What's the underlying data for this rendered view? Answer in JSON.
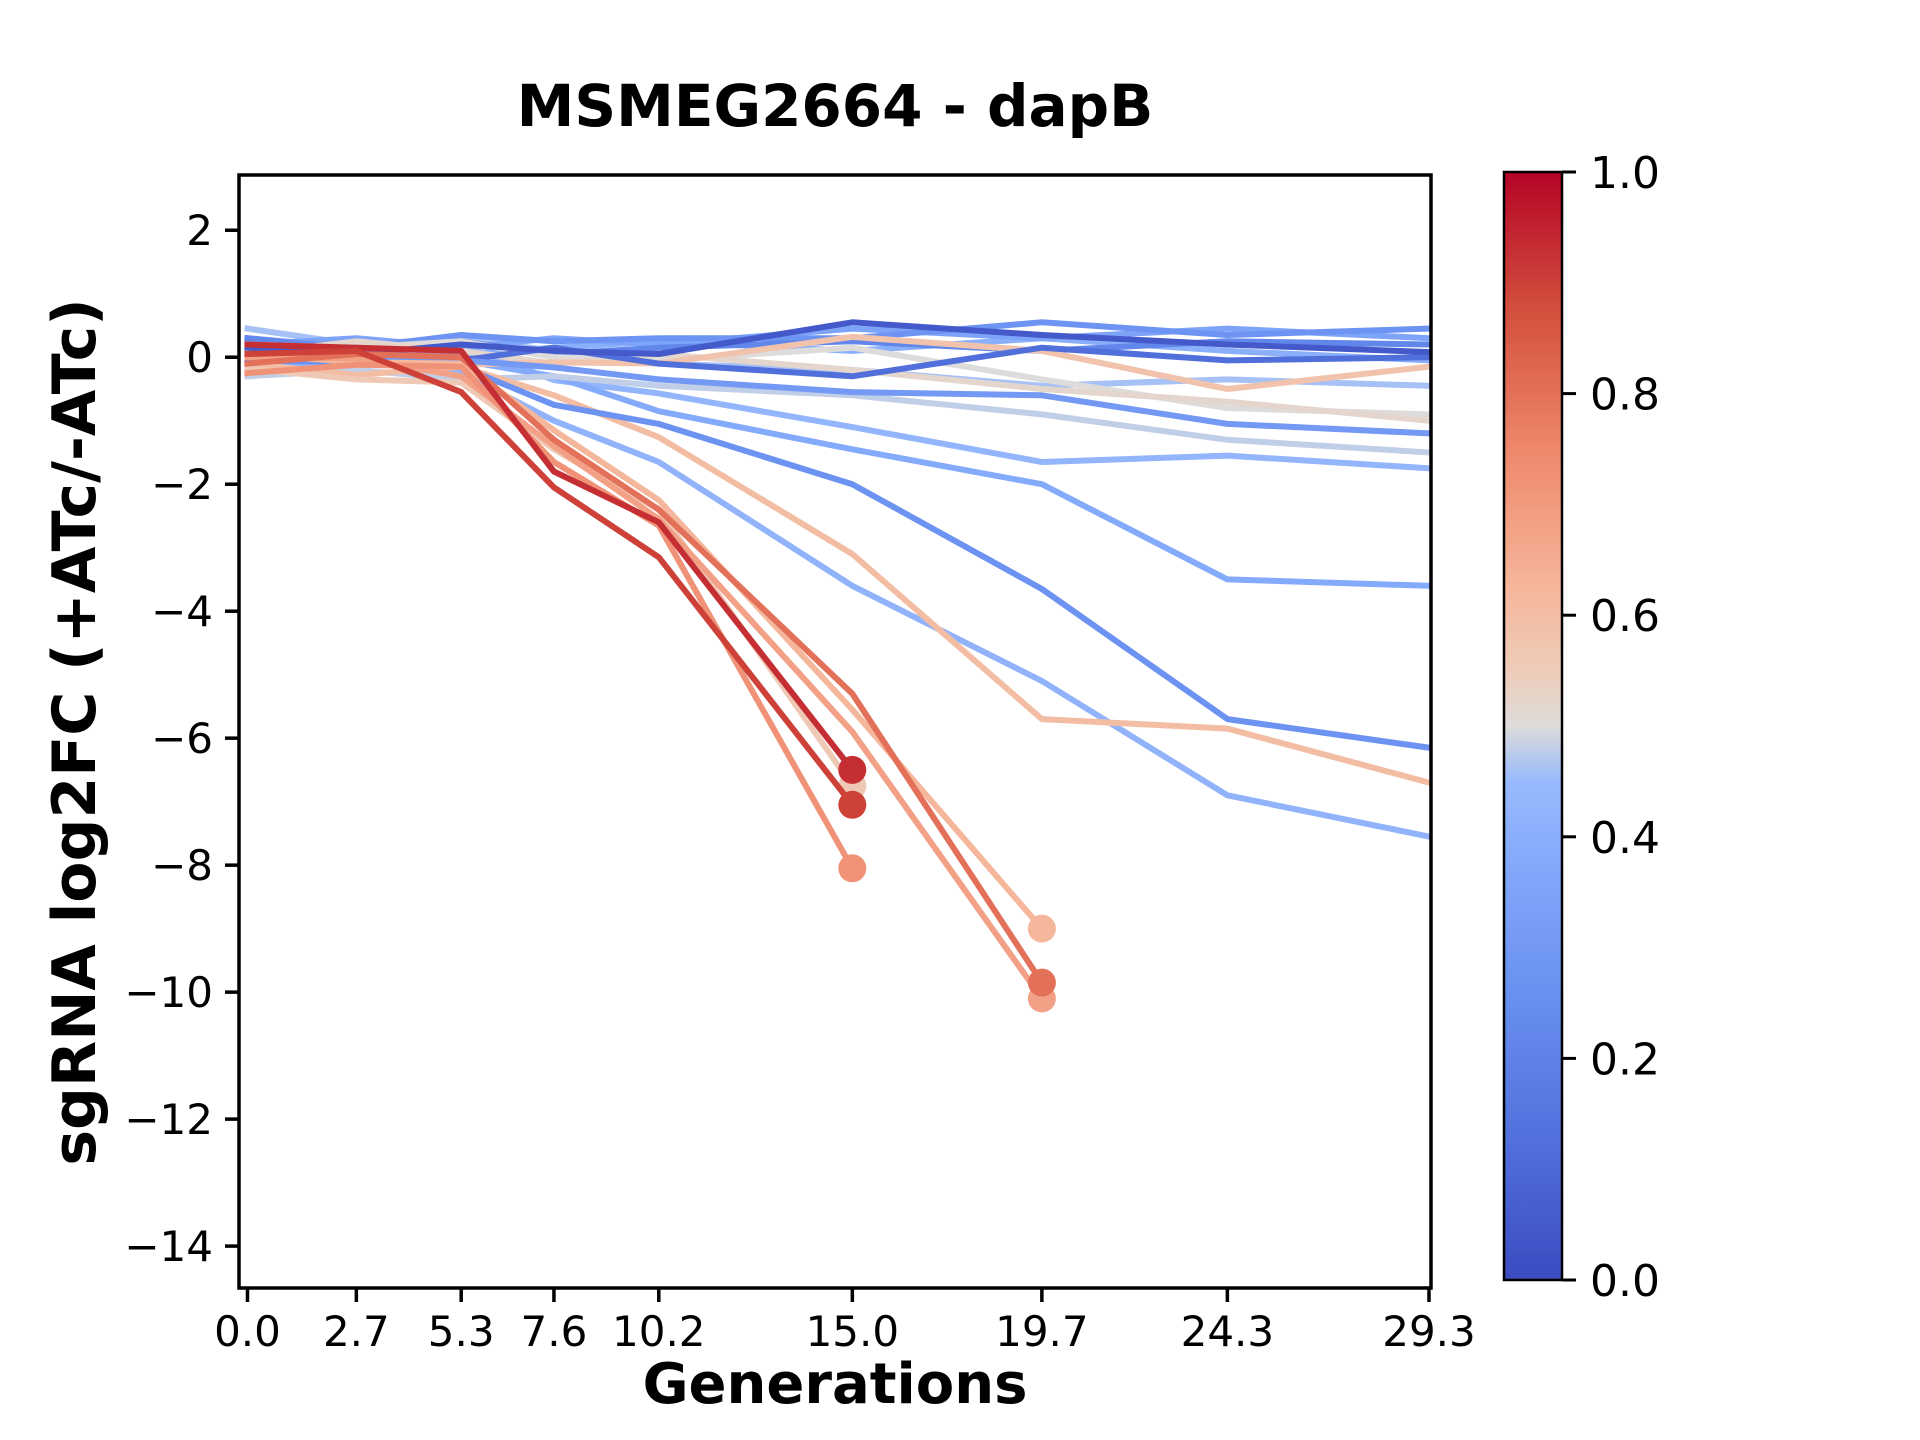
{
  "title": "MSMEG2664 - dapB",
  "axes": {
    "xlabel": "Generations",
    "ylabel": "sgRNA log2FC (+ATc/-ATc)"
  },
  "colorbar": {
    "min": 0.0,
    "max": 1.0,
    "tick_labels": [
      "1.0",
      "0.8",
      "0.6",
      "0.4",
      "0.2",
      "0.0"
    ],
    "top_color": "#b40426",
    "mid_color": "#dddcdb",
    "bottom_color": "#3b4cc0",
    "colormap": "coolwarm"
  },
  "chart_data": {
    "type": "line",
    "title": "MSMEG2664 - dapB",
    "xlabel": "Generations",
    "ylabel": "sgRNA log2FC (+ATc/-ATc)",
    "grid": false,
    "x": [
      0.0,
      2.7,
      5.3,
      7.6,
      10.2,
      15.0,
      19.7,
      24.3,
      29.3
    ],
    "xtick_labels": [
      "0.0",
      "2.7",
      "5.3",
      "7.6",
      "10.2",
      "15.0",
      "19.7",
      "24.3",
      "29.3"
    ],
    "ytick_values": [
      2,
      0,
      -2,
      -4,
      -6,
      -8,
      -10,
      -12,
      -14
    ],
    "ytick_labels": [
      "2",
      "0",
      "−2",
      "−4",
      "−6",
      "−8",
      "−10",
      "−12",
      "−14"
    ],
    "xlim": [
      -0.21,
      29.35
    ],
    "ylim": [
      -14.66,
      2.87
    ],
    "series": [
      {
        "c": 0.43,
        "dot": false,
        "values": [
          0.25,
          0.12,
          0.2,
          -0.36,
          -0.57,
          -1.1,
          -1.65,
          -1.55,
          -1.75
        ]
      },
      {
        "c": 0.38,
        "dot": false,
        "values": [
          0.0,
          0.1,
          -0.05,
          -0.3,
          -0.85,
          -1.45,
          -2.0,
          -3.5,
          -3.6
        ]
      },
      {
        "c": 0.48,
        "dot": false,
        "values": [
          -0.3,
          -0.2,
          -0.35,
          -0.3,
          -0.45,
          -0.6,
          -0.9,
          -1.3,
          -1.5
        ]
      },
      {
        "c": 0.46,
        "dot": false,
        "values": [
          0.45,
          0.2,
          0.3,
          0.1,
          -0.1,
          -0.2,
          -0.45,
          -0.35,
          -0.45
        ]
      },
      {
        "c": 0.4,
        "dot": false,
        "values": [
          0.1,
          0.2,
          0.05,
          0.15,
          0.25,
          0.1,
          0.3,
          0.1,
          -0.05
        ]
      },
      {
        "c": 0.35,
        "dot": false,
        "values": [
          0.2,
          0.3,
          0.15,
          0.3,
          0.2,
          0.45,
          0.3,
          0.45,
          0.3
        ]
      },
      {
        "c": 0.28,
        "dot": false,
        "values": [
          0.3,
          0.15,
          0.35,
          0.25,
          0.3,
          0.3,
          0.55,
          0.35,
          0.45
        ]
      },
      {
        "c": 0.22,
        "dot": false,
        "values": [
          0.3,
          0.1,
          0.25,
          0.05,
          0.15,
          0.25,
          0.1,
          0.25,
          0.2
        ]
      },
      {
        "c": 0.42,
        "dot": false,
        "values": [
          -0.15,
          -0.05,
          -0.25,
          -1.0,
          -1.65,
          -3.6,
          -5.1,
          -6.9,
          -7.55
        ]
      },
      {
        "c": 0.6,
        "dot": false,
        "values": [
          -0.1,
          -0.28,
          -0.15,
          -0.6,
          -1.26,
          -3.1,
          -5.7,
          -5.85,
          -6.7
        ]
      },
      {
        "c": 0.27,
        "dot": false,
        "values": [
          -0.05,
          -0.08,
          -0.15,
          -0.75,
          -1.05,
          -2.0,
          -3.65,
          -5.7,
          -6.15
        ]
      },
      {
        "c": 0.5,
        "dot": false,
        "values": [
          0.2,
          0.15,
          0.25,
          0.0,
          -0.05,
          0.15,
          -0.35,
          -0.8,
          -0.9
        ]
      },
      {
        "c": 0.52,
        "dot": false,
        "values": [
          0.05,
          0.25,
          0.1,
          -0.1,
          0.05,
          -0.2,
          -0.5,
          -0.7,
          -1.0
        ]
      },
      {
        "c": 0.58,
        "dot": false,
        "values": [
          0.1,
          0.05,
          -0.12,
          -0.08,
          -0.1,
          0.32,
          0.1,
          -0.5,
          -0.15
        ]
      },
      {
        "c": 0.12,
        "dot": false,
        "values": [
          -0.1,
          0.08,
          -0.05,
          0.15,
          -0.1,
          -0.3,
          0.15,
          -0.05,
          0.0
        ]
      },
      {
        "c": 0.05,
        "dot": false,
        "values": [
          0.15,
          0.05,
          0.2,
          0.1,
          0.05,
          0.55,
          0.35,
          0.2,
          0.08
        ]
      },
      {
        "c": 0.3,
        "dot": false,
        "values": [
          0.05,
          0.0,
          -0.05,
          -0.16,
          -0.35,
          -0.55,
          -0.6,
          -1.05,
          -1.2
        ]
      },
      {
        "c": 0.56,
        "dot": true,
        "values": [
          -0.18,
          -0.35,
          -0.4,
          -1.45,
          -2.4,
          -6.75
        ]
      },
      {
        "c": 0.62,
        "dot": true,
        "values": [
          0.05,
          -0.08,
          -0.1,
          -1.15,
          -2.25,
          -5.55,
          -9.0
        ]
      },
      {
        "c": 0.68,
        "dot": true,
        "values": [
          0.0,
          -0.02,
          -0.3,
          -1.4,
          -2.55,
          -5.9,
          -10.1
        ]
      },
      {
        "c": 0.72,
        "dot": true,
        "values": [
          -0.25,
          -0.12,
          -0.15,
          -1.65,
          -2.65,
          -8.05
        ]
      },
      {
        "c": 0.8,
        "dot": true,
        "values": [
          -0.1,
          0.05,
          0.0,
          -1.3,
          -2.4,
          -5.3,
          -9.85
        ]
      },
      {
        "c": 0.93,
        "dot": true,
        "values": [
          0.2,
          0.15,
          0.1,
          -1.8,
          -2.6,
          -6.5
        ]
      },
      {
        "c": 0.9,
        "dot": true,
        "values": [
          0.05,
          0.1,
          -0.55,
          -2.05,
          -3.15,
          -7.05
        ]
      }
    ]
  }
}
